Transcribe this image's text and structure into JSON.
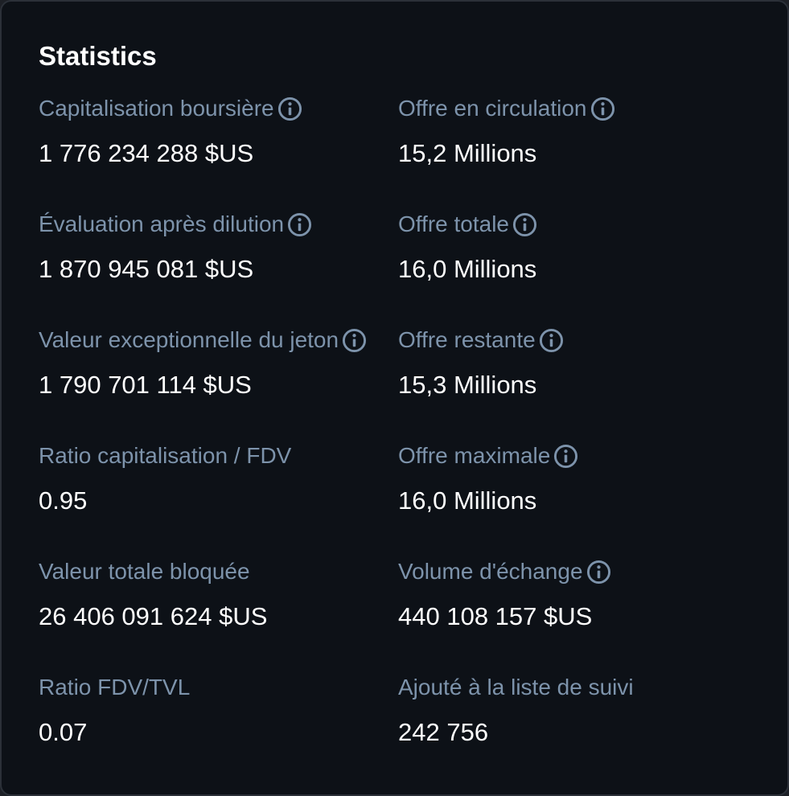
{
  "title": "Statistics",
  "stats": [
    {
      "label": "Capitalisation boursière",
      "value": "1 776 234 288 $US",
      "info": true
    },
    {
      "label": "Offre en circulation",
      "value": "15,2 Millions",
      "info": true
    },
    {
      "label": "Évaluation après dilution",
      "value": "1 870 945 081 $US",
      "info": true
    },
    {
      "label": "Offre totale",
      "value": "16,0 Millions",
      "info": true
    },
    {
      "label": "Valeur exceptionnelle du jeton",
      "value": "1 790 701 114 $US",
      "info": true
    },
    {
      "label": "Offre restante",
      "value": "15,3 Millions",
      "info": true
    },
    {
      "label": "Ratio capitalisation / FDV",
      "value": "0.95",
      "info": false
    },
    {
      "label": "Offre maximale",
      "value": "16,0 Millions",
      "info": true
    },
    {
      "label": "Valeur totale bloquée",
      "value": "26 406 091 624 $US",
      "info": false
    },
    {
      "label": "Volume d'échange",
      "value": "440 108 157 $US",
      "info": true
    },
    {
      "label": "Ratio FDV/TVL",
      "value": "0.07",
      "info": false
    },
    {
      "label": "Ajouté à la liste de suivi",
      "value": "242 756",
      "info": false
    }
  ],
  "icons": {
    "info": "info-circle-icon"
  },
  "colors": {
    "background": "#0d1117",
    "label": "#7d93ab",
    "value": "#ffffff",
    "icon": "#7d93ab"
  }
}
